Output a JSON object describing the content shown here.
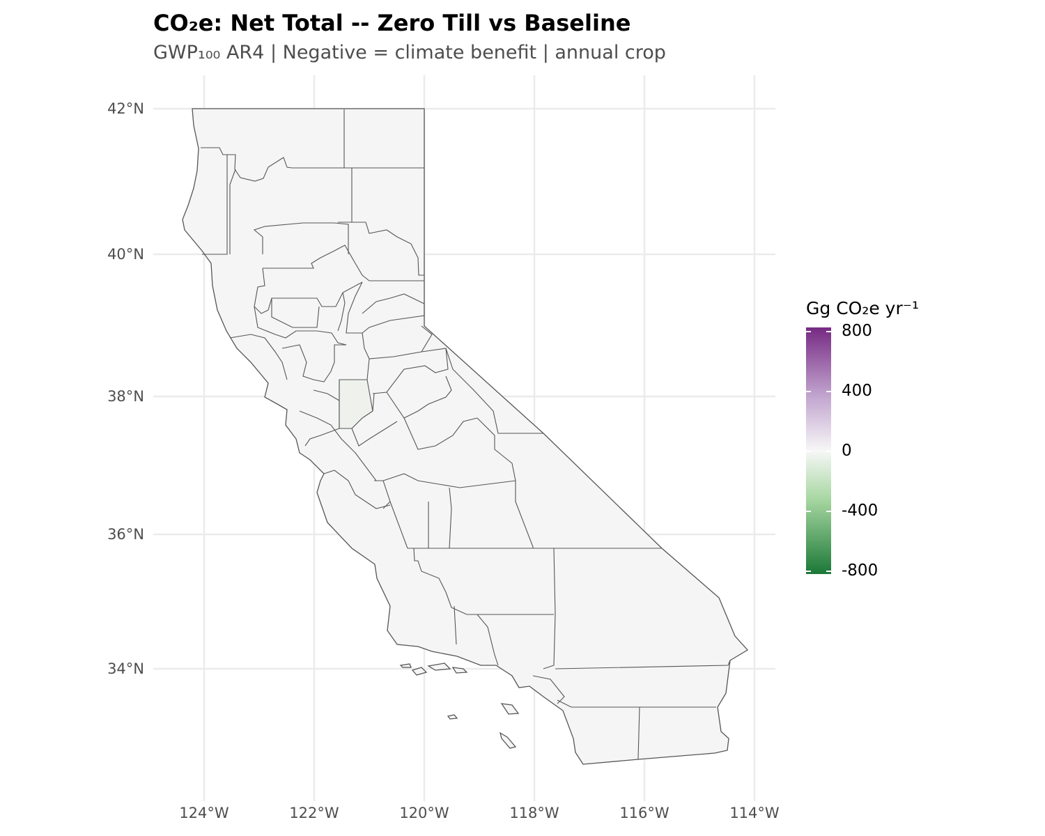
{
  "title": "CO₂e: Net Total -- Zero Till vs Baseline",
  "subtitle": "GWP₁₀₀ AR4 | Negative = climate benefit | annual crop",
  "colors": {
    "county_fill": "#f5f5f5",
    "county_fill_highlight": "#eef1ec",
    "county_stroke": "#555555",
    "grid": "#ebebeb",
    "scale_high": "#762a83",
    "scale_mid": "#f7f7f7",
    "scale_low": "#1b7837"
  },
  "map": {
    "region": "California counties",
    "lon_ticks": [
      "124°W",
      "122°W",
      "120°W",
      "118°W",
      "116°W",
      "114°W"
    ],
    "lat_ticks": [
      "42°N",
      "40°N",
      "38°N",
      "36°N",
      "34°N"
    ]
  },
  "legend": {
    "title": "Gg CO₂e yr⁻¹",
    "labels": [
      "800",
      "400",
      "0",
      "-400",
      "-800"
    ],
    "range": [
      -800,
      800
    ]
  }
}
